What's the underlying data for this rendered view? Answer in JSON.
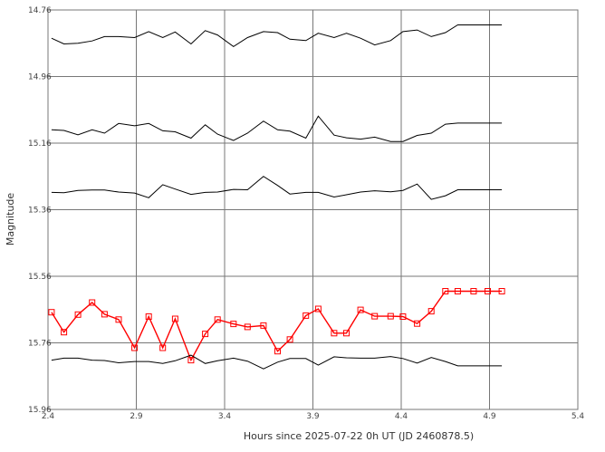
{
  "chart_data": {
    "type": "line",
    "xlabel": "Hours since 2025-07-22 0h UT (JD 2460878.5)",
    "ylabel": "Magnitude",
    "xlim": [
      2.4,
      5.4
    ],
    "ylim": [
      14.76,
      15.96
    ],
    "y_inverted": true,
    "grid": true,
    "x_ticks": [
      "2.4",
      "2.9",
      "3.4",
      "3.9",
      "4.4",
      "4.9",
      "5.4"
    ],
    "y_ticks": [
      "14.76",
      "14.96",
      "15.16",
      "15.36",
      "15.56",
      "15.76",
      "15.96"
    ],
    "x": [
      2.42,
      2.49,
      2.57,
      2.65,
      2.72,
      2.8,
      2.89,
      2.97,
      3.05,
      3.12,
      3.21,
      3.29,
      3.36,
      3.45,
      3.53,
      3.62,
      3.7,
      3.77,
      3.86,
      3.93,
      4.02,
      4.09,
      4.17,
      4.25,
      4.34,
      4.41,
      4.49,
      4.57,
      4.65,
      4.72,
      4.81,
      4.89,
      4.97
    ],
    "series": [
      {
        "name": "",
        "color": "#000000",
        "values": [
          14.845,
          14.862,
          14.86,
          14.853,
          14.84,
          14.84,
          14.843,
          14.825,
          14.843,
          14.826,
          14.862,
          14.822,
          14.835,
          14.87,
          14.843,
          14.825,
          14.828,
          14.848,
          14.852,
          14.83,
          14.843,
          14.83,
          14.845,
          14.865,
          14.852,
          14.825,
          14.82,
          14.84,
          14.828,
          14.805,
          14.805,
          14.805,
          14.805
        ]
      },
      {
        "name": "",
        "color": "#000000",
        "values": [
          15.12,
          15.122,
          15.135,
          15.12,
          15.13,
          15.101,
          15.108,
          15.101,
          15.123,
          15.126,
          15.145,
          15.105,
          15.133,
          15.152,
          15.13,
          15.094,
          15.12,
          15.124,
          15.145,
          15.079,
          15.136,
          15.144,
          15.148,
          15.142,
          15.155,
          15.155,
          15.137,
          15.13,
          15.103,
          15.1,
          15.1,
          15.1,
          15.1
        ]
      },
      {
        "name": "",
        "color": "#000000",
        "values": [
          15.308,
          15.309,
          15.302,
          15.301,
          15.301,
          15.307,
          15.31,
          15.324,
          15.285,
          15.298,
          15.314,
          15.308,
          15.307,
          15.299,
          15.3,
          15.26,
          15.287,
          15.313,
          15.308,
          15.308,
          15.322,
          15.315,
          15.307,
          15.303,
          15.306,
          15.302,
          15.283,
          15.329,
          15.318,
          15.3,
          15.3,
          15.3,
          15.3
        ]
      },
      {
        "name": "",
        "color": "#ff0000",
        "markers": "square",
        "values": [
          15.668,
          15.728,
          15.675,
          15.639,
          15.674,
          15.69,
          15.775,
          15.681,
          15.775,
          15.688,
          15.812,
          15.733,
          15.69,
          15.703,
          15.712,
          15.708,
          15.785,
          15.75,
          15.678,
          15.658,
          15.731,
          15.731,
          15.661,
          15.68,
          15.68,
          15.681,
          15.702,
          15.665,
          15.605,
          15.605,
          15.605,
          15.605,
          15.605
        ]
      },
      {
        "name": "",
        "color": "#000000",
        "values": [
          15.812,
          15.806,
          15.806,
          15.812,
          15.813,
          15.82,
          15.816,
          15.816,
          15.822,
          15.814,
          15.797,
          15.822,
          15.814,
          15.806,
          15.815,
          15.838,
          15.818,
          15.807,
          15.807,
          15.827,
          15.802,
          15.805,
          15.806,
          15.806,
          15.801,
          15.807,
          15.821,
          15.804,
          15.816,
          15.829,
          15.829,
          15.829,
          15.829
        ]
      }
    ]
  }
}
